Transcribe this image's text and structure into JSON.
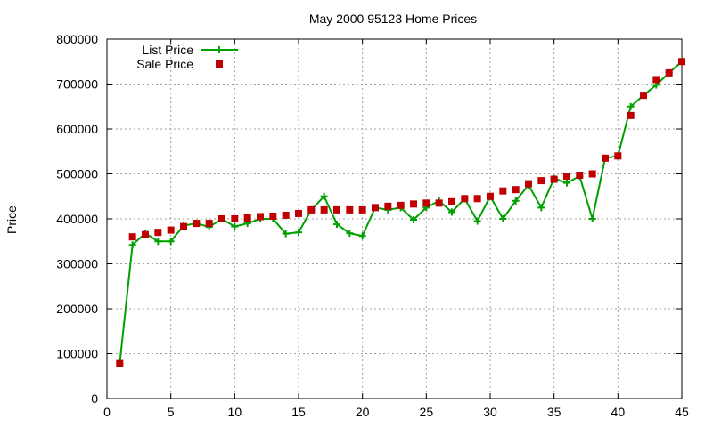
{
  "chart_data": {
    "type": "line",
    "title": "May 2000 95123 Home Prices",
    "xlabel": "",
    "ylabel": "Price",
    "xlim": [
      0,
      45
    ],
    "ylim": [
      0,
      800000
    ],
    "xticks": [
      0,
      5,
      10,
      15,
      20,
      25,
      30,
      35,
      40,
      45
    ],
    "yticks": [
      0,
      100000,
      200000,
      300000,
      400000,
      500000,
      600000,
      700000,
      800000
    ],
    "grid": true,
    "legend": "top-left",
    "series": [
      {
        "name": "List Price",
        "style": "line-plus",
        "color": "#00a000",
        "x": [
          1,
          2,
          3,
          4,
          5,
          6,
          7,
          8,
          9,
          10,
          11,
          12,
          13,
          14,
          15,
          16,
          17,
          18,
          19,
          20,
          21,
          22,
          23,
          24,
          25,
          26,
          27,
          28,
          29,
          30,
          31,
          32,
          33,
          34,
          35,
          36,
          37,
          38,
          39,
          40,
          41,
          42,
          43,
          44,
          45
        ],
        "y": [
          78000,
          342000,
          368000,
          350000,
          350000,
          385000,
          390000,
          382000,
          400000,
          383000,
          390000,
          400000,
          400000,
          367000,
          370000,
          420000,
          450000,
          388000,
          368000,
          362000,
          425000,
          420000,
          425000,
          398000,
          425000,
          440000,
          415000,
          445000,
          395000,
          450000,
          400000,
          440000,
          475000,
          425000,
          490000,
          480000,
          495000,
          400000,
          535000,
          540000,
          650000,
          675000,
          698000,
          725000,
          750000
        ]
      },
      {
        "name": "Sale Price",
        "style": "square",
        "color": "#c00000",
        "x": [
          1,
          2,
          3,
          4,
          5,
          6,
          7,
          8,
          9,
          10,
          11,
          12,
          13,
          14,
          15,
          16,
          17,
          18,
          19,
          20,
          21,
          22,
          23,
          24,
          25,
          26,
          27,
          28,
          29,
          30,
          31,
          32,
          33,
          34,
          35,
          36,
          37,
          38,
          39,
          40,
          41,
          42,
          43,
          44,
          45
        ],
        "y": [
          78000,
          360000,
          365000,
          370000,
          375000,
          383000,
          390000,
          390000,
          400000,
          400000,
          402000,
          405000,
          406000,
          408000,
          412000,
          420000,
          420000,
          420000,
          420000,
          420000,
          425000,
          428000,
          430000,
          433000,
          435000,
          435000,
          438000,
          445000,
          445000,
          450000,
          462000,
          465000,
          478000,
          485000,
          488000,
          495000,
          497000,
          500000,
          535000,
          540000,
          630000,
          675000,
          710000,
          725000,
          750000
        ]
      }
    ]
  }
}
